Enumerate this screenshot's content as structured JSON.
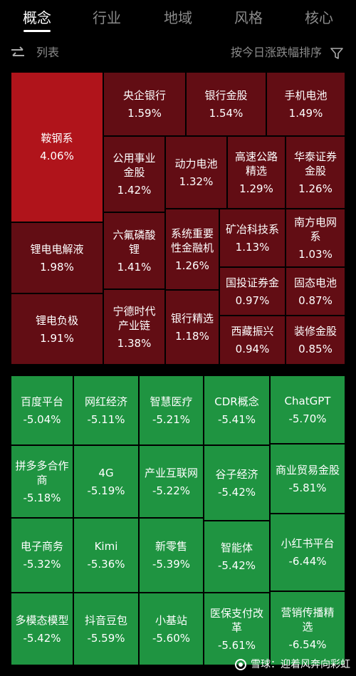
{
  "tabs": [
    "概念",
    "行业",
    "地域",
    "风格",
    "核心"
  ],
  "toolbar": {
    "list_label": "列表",
    "sort_label": "按今日涨跌幅排序",
    "swap_icon": "swap-arrows-icon",
    "filter_icon": "filter-funnel-icon"
  },
  "colors": {
    "gain": "#620d14",
    "gain_top": "#b0141b",
    "loss": "#1f9441",
    "background": "#000000"
  },
  "gainers": [
    {
      "name": "鞍钢系",
      "pct": "4.06%"
    },
    {
      "name": "央企银行",
      "pct": "1.59%"
    },
    {
      "name": "银行金股",
      "pct": "1.54%"
    },
    {
      "name": "手机电池",
      "pct": "1.49%"
    },
    {
      "name": "公用事业金股",
      "pct": "1.42%"
    },
    {
      "name": "动力电池",
      "pct": "1.32%"
    },
    {
      "name": "高速公路精选",
      "pct": "1.29%"
    },
    {
      "name": "华泰证券金股",
      "pct": "1.26%"
    },
    {
      "name": "锂电电解液",
      "pct": "1.98%"
    },
    {
      "name": "六氟磷酸锂",
      "pct": "1.41%"
    },
    {
      "name": "系统重要性金融机",
      "pct": "1.26%"
    },
    {
      "name": "矿冶科技系",
      "pct": "1.13%"
    },
    {
      "name": "南方电网系",
      "pct": "1.03%"
    },
    {
      "name": "国投证券金",
      "pct": "0.97%"
    },
    {
      "name": "固态电池",
      "pct": "0.87%"
    },
    {
      "name": "锂电负极",
      "pct": "1.91%"
    },
    {
      "name": "宁德时代产业链",
      "pct": "1.38%"
    },
    {
      "name": "银行精选",
      "pct": "1.18%"
    },
    {
      "name": "西藏振兴",
      "pct": "0.94%"
    },
    {
      "name": "装修金股",
      "pct": "0.85%"
    }
  ],
  "losers": [
    {
      "name": "百度平台",
      "pct": "-5.04%"
    },
    {
      "name": "网红经济",
      "pct": "-5.11%"
    },
    {
      "name": "智慧医疗",
      "pct": "-5.21%"
    },
    {
      "name": "CDR概念",
      "pct": "-5.41%"
    },
    {
      "name": "ChatGPT",
      "pct": "-5.70%"
    },
    {
      "name": "拼多多合作商",
      "pct": "-5.18%"
    },
    {
      "name": "4G",
      "pct": "-5.19%"
    },
    {
      "name": "产业互联网",
      "pct": "-5.22%"
    },
    {
      "name": "谷子经济",
      "pct": "-5.42%"
    },
    {
      "name": "商业贸易金股",
      "pct": "-5.81%"
    },
    {
      "name": "电子商务",
      "pct": "-5.32%"
    },
    {
      "name": "Kimi",
      "pct": "-5.36%"
    },
    {
      "name": "新零售",
      "pct": "-5.39%"
    },
    {
      "name": "智能体",
      "pct": "-5.42%"
    },
    {
      "name": "小红书平台",
      "pct": "-6.44%"
    },
    {
      "name": "多模态模型",
      "pct": "-5.42%"
    },
    {
      "name": "抖音豆包",
      "pct": "-5.59%"
    },
    {
      "name": "小基站",
      "pct": "-5.60%"
    },
    {
      "name": "医保支付改革",
      "pct": "-5.61%"
    },
    {
      "name": "营销传播精选",
      "pct": "-6.54%"
    }
  ],
  "watermark": "雪球：迎着风奔向彩虹"
}
